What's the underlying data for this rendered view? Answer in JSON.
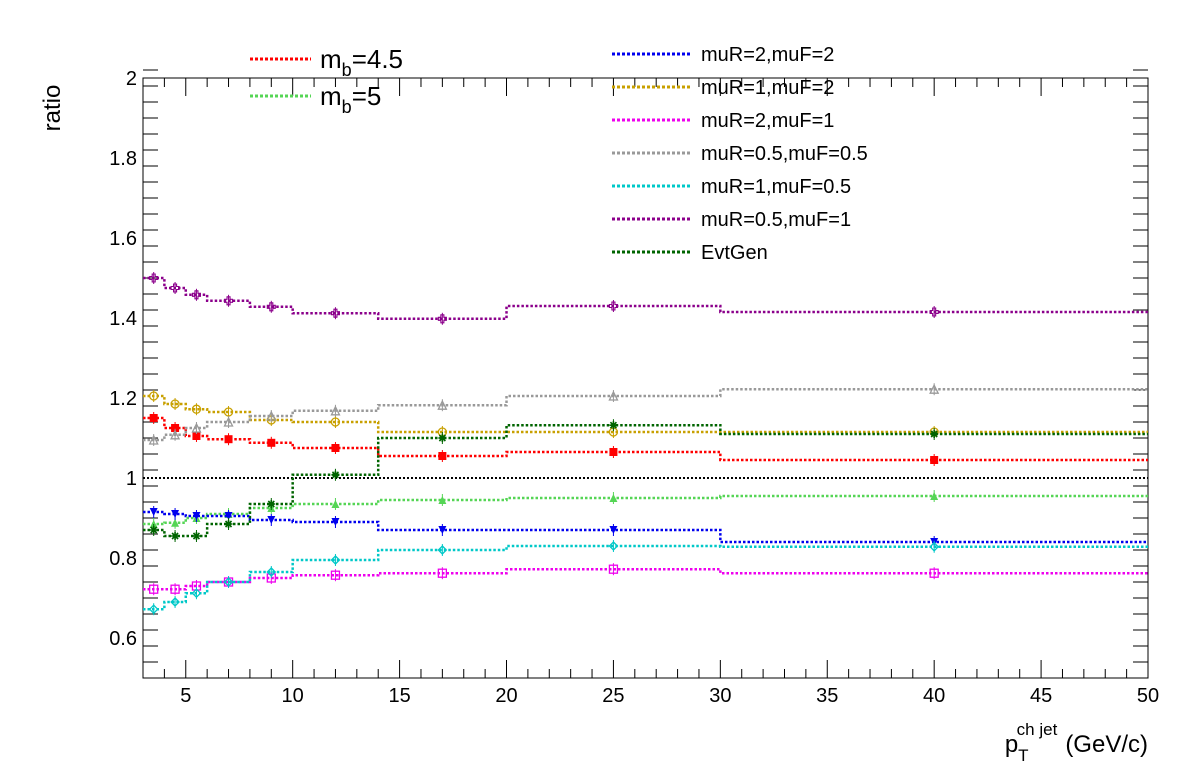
{
  "chart_data": {
    "type": "line",
    "xlabel": {
      "main": "p",
      "sub": "T",
      "sup": "ch jet",
      "unit": "(GeV/c)"
    },
    "ylabel": "ratio",
    "xlim": [
      3,
      50
    ],
    "ylim": [
      0.5,
      2.0
    ],
    "xticks": [
      5,
      10,
      15,
      20,
      25,
      30,
      35,
      40,
      45,
      50
    ],
    "yticks": [
      0.6,
      0.8,
      1,
      1.2,
      1.4,
      1.6,
      1.8,
      2
    ],
    "bin_edges": [
      3,
      4,
      5,
      6,
      8,
      10,
      14,
      20,
      30,
      50
    ],
    "bin_centers": [
      3.5,
      4.5,
      5.5,
      7,
      9,
      12,
      17,
      25,
      40
    ],
    "reference_line": 1.0,
    "legend_big": [
      {
        "name_main": "m",
        "name_sub": "b",
        "name_rest": "=4.5",
        "series": 0
      },
      {
        "name_main": "m",
        "name_sub": "b",
        "name_rest": "=5",
        "series": 1
      }
    ],
    "series": [
      {
        "name": "mb=4.5",
        "color": "#ff0000",
        "marker": "square-filled",
        "values": [
          1.15,
          1.125,
          1.105,
          1.097,
          1.088,
          1.075,
          1.055,
          1.065,
          1.045
        ]
      },
      {
        "name": "mb=5",
        "color": "#55d555",
        "marker": "triangle-filled",
        "values": [
          0.885,
          0.888,
          0.9,
          0.91,
          0.925,
          0.935,
          0.945,
          0.95,
          0.955
        ]
      },
      {
        "name": "muR=2,muF=2",
        "color": "#0000ee",
        "marker": "triangle-down-filled",
        "values": [
          0.915,
          0.91,
          0.905,
          0.905,
          0.895,
          0.89,
          0.87,
          0.87,
          0.84
        ]
      },
      {
        "name": "muR=1,muF=2",
        "color": "#c8a000",
        "marker": "circle-open",
        "values": [
          1.205,
          1.185,
          1.172,
          1.165,
          1.145,
          1.14,
          1.115,
          1.115,
          1.115
        ]
      },
      {
        "name": "muR=2,muF=1",
        "color": "#ee00ee",
        "marker": "square-open",
        "values": [
          0.722,
          0.722,
          0.73,
          0.74,
          0.75,
          0.757,
          0.762,
          0.772,
          0.762
        ]
      },
      {
        "name": "muR=0.5,muF=0.5",
        "color": "#999999",
        "marker": "triangle-open",
        "values": [
          1.095,
          1.108,
          1.125,
          1.14,
          1.155,
          1.168,
          1.182,
          1.205,
          1.222
        ]
      },
      {
        "name": "muR=1,muF=0.5",
        "color": "#00c8c8",
        "marker": "diamond-open",
        "values": [
          0.672,
          0.69,
          0.712,
          0.74,
          0.765,
          0.795,
          0.82,
          0.83,
          0.828
        ]
      },
      {
        "name": "muR=0.5,muF=1",
        "color": "#8b008b",
        "marker": "cross-open",
        "values": [
          1.5,
          1.475,
          1.458,
          1.443,
          1.428,
          1.412,
          1.398,
          1.43,
          1.415
        ]
      },
      {
        "name": "EvtGen",
        "color": "#006400",
        "marker": "star-filled",
        "values": [
          0.87,
          0.855,
          0.855,
          0.885,
          0.935,
          1.008,
          1.1,
          1.132,
          1.11
        ]
      }
    ]
  }
}
